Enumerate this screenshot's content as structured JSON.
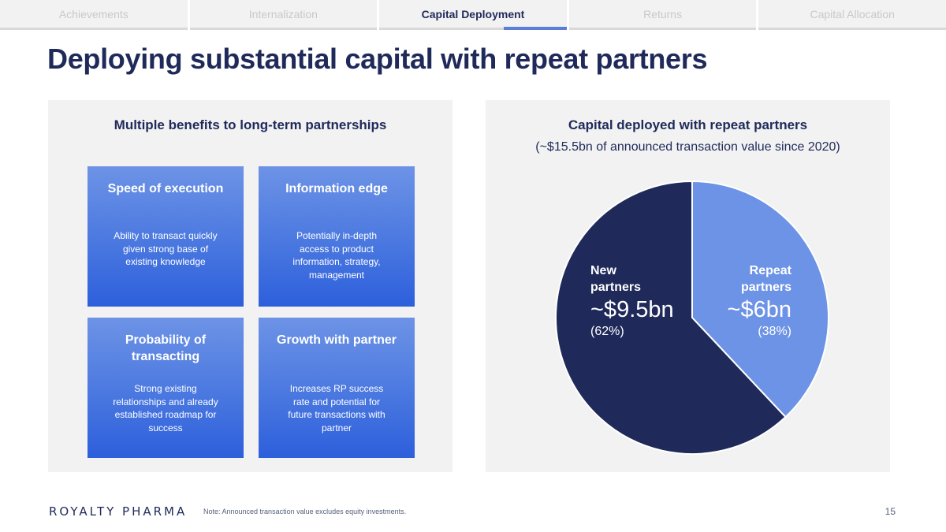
{
  "nav": {
    "tabs": [
      {
        "label": "Achievements"
      },
      {
        "label": "Internalization"
      },
      {
        "label": "Capital Deployment"
      },
      {
        "label": "Returns"
      },
      {
        "label": "Capital Allocation"
      }
    ],
    "active_index": 2
  },
  "title": "Deploying substantial capital with repeat partners",
  "left_panel": {
    "heading": "Multiple benefits to long-term partnerships",
    "cards": [
      {
        "title": "Speed of execution",
        "body": "Ability to transact quickly given strong base of existing knowledge"
      },
      {
        "title": "Information edge",
        "body": "Potentially in-depth access to product information, strategy, management"
      },
      {
        "title": "Probability of transacting",
        "body": "Strong existing relationships and already established roadmap for success"
      },
      {
        "title": "Growth with partner",
        "body": "Increases RP success rate and potential for future transactions with partner"
      }
    ]
  },
  "right_panel": {
    "heading": "Capital deployed with repeat partners",
    "subheading": "(~$15.5bn of announced transaction value since 2020)"
  },
  "chart_data": {
    "type": "pie",
    "categories": [
      "New partners",
      "Repeat partners"
    ],
    "values": [
      62,
      38
    ],
    "value_labels": [
      "~$9.5bn",
      "~$6bn"
    ],
    "percent_labels": [
      "(62%)",
      "(38%)"
    ],
    "colors": [
      "#1f2a5a",
      "#6d93e6"
    ],
    "title": "Capital deployed with repeat partners",
    "subtitle": "(~$15.5bn of announced transaction value since 2020)"
  },
  "footer": {
    "logo": "ROYALTY PHARMA",
    "note": "Note: Announced transaction value excludes equity investments.",
    "page_number": "15"
  },
  "colors": {
    "navy": "#1f2a5a",
    "accent_blue": "#5b7fd9",
    "card_gradient_top": "#6d93e6",
    "card_gradient_bottom": "#2d5fdc",
    "panel_bg": "#f2f2f2"
  }
}
